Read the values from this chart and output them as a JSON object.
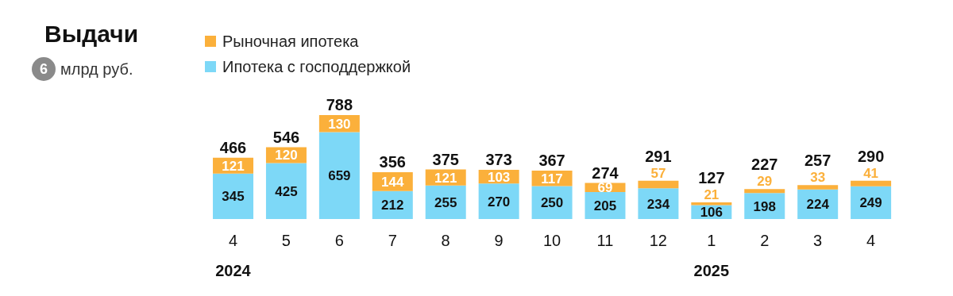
{
  "chart_data": {
    "type": "bar",
    "title": "Выдачи",
    "subtitle": "млрд руб.",
    "stacked": true,
    "data_labels": true,
    "legend": "top left",
    "annotations": [
      "6",
      "2024",
      "2025"
    ],
    "categories": [
      "4",
      "5",
      "6",
      "7",
      "8",
      "9",
      "10",
      "11",
      "12",
      "1",
      "2",
      "3",
      "4"
    ],
    "series": [
      {
        "name": "Ипотека с господдержкой",
        "color": "#7dd8f7",
        "values": [
          345,
          425,
          659,
          212,
          255,
          270,
          250,
          205,
          234,
          106,
          198,
          224,
          249
        ]
      },
      {
        "name": "Рыночная ипотека",
        "color": "#fbb03b",
        "values": [
          121,
          120,
          130,
          144,
          121,
          103,
          117,
          69,
          57,
          21,
          29,
          33,
          41
        ]
      }
    ],
    "totals": [
      "466",
      "546",
      "788",
      "356",
      "375",
      "373",
      "367",
      "274",
      "291",
      "127",
      "227",
      "257",
      "290"
    ]
  }
}
